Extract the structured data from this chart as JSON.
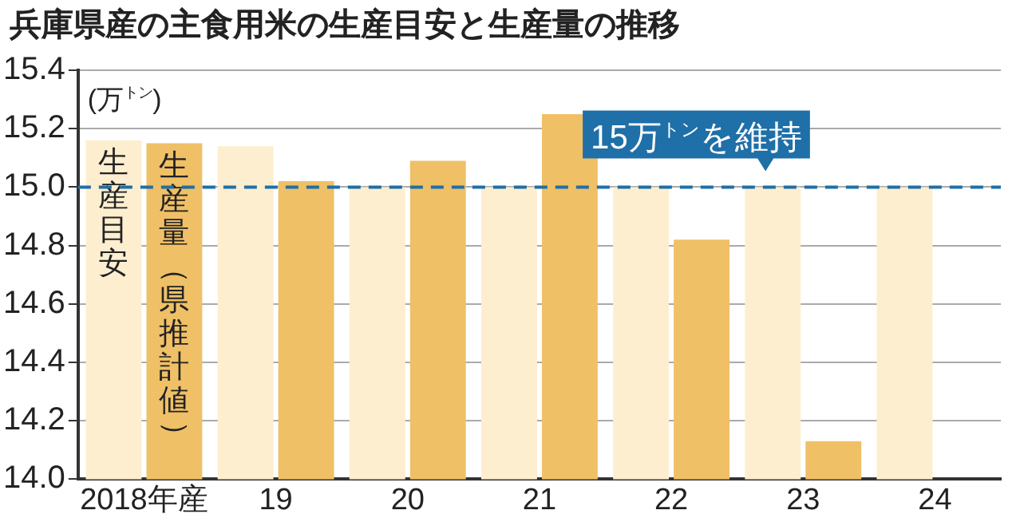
{
  "chart_data": {
    "type": "bar",
    "title": "兵庫県産の主食用米の生産目安と生産量の推移",
    "ylabel": "(万$^{トン}$)",
    "categories": [
      "2018年産",
      "19",
      "20",
      "21",
      "22",
      "23",
      "24"
    ],
    "series": [
      {
        "name": "生産目安",
        "color": "#fdeecf",
        "values": [
          15.16,
          15.14,
          15.0,
          15.0,
          15.0,
          15.0,
          15.0
        ]
      },
      {
        "name": "生産量（県推計値）",
        "color": "#efc066",
        "values": [
          15.15,
          15.02,
          15.09,
          15.25,
          14.82,
          14.13,
          null
        ]
      }
    ],
    "ylim": [
      14.0,
      15.4
    ],
    "yticks": [
      {
        "value": 14.0,
        "label": "14.0"
      },
      14.2,
      14.4,
      14.6,
      14.8,
      {
        "value": 15.0,
        "label": "15.0"
      },
      15.2,
      15.4
    ],
    "grid": "y",
    "ref_lines": [
      {
        "axis": "y",
        "value": 15.0,
        "label": "15万$^{トン}$を維持",
        "color": "#1f6fa8",
        "line_style": "dashed"
      }
    ]
  }
}
